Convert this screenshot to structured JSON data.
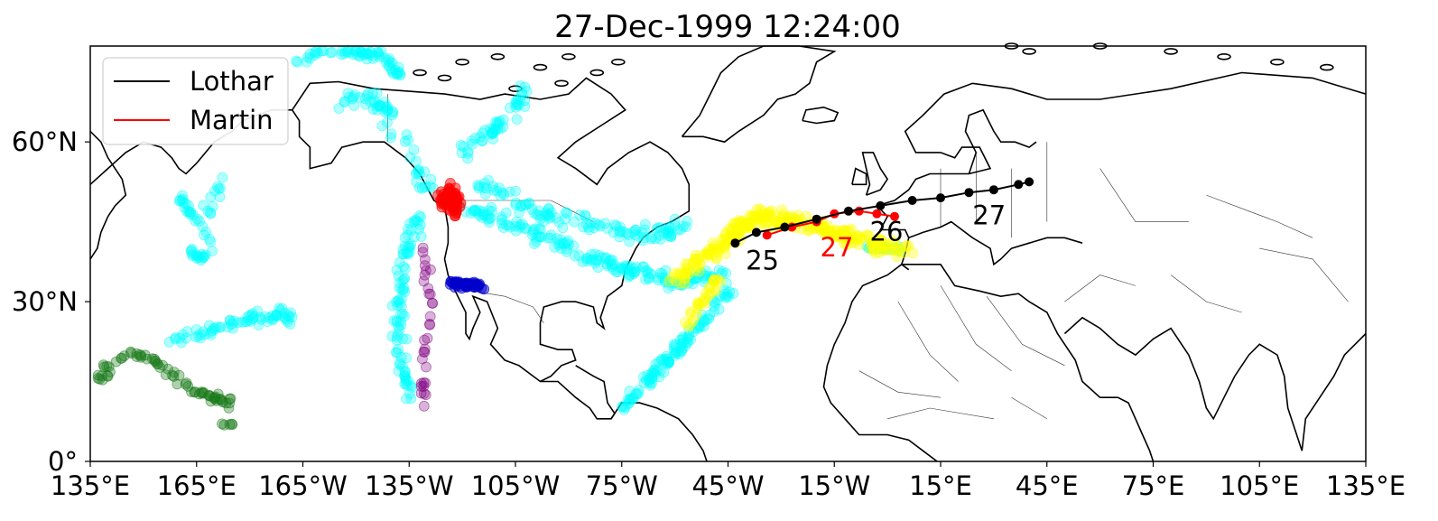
{
  "chart_data": {
    "type": "scatter",
    "title": "27-Dec-1999 12:24:00",
    "map": {
      "projection": "plate-carree",
      "lon_range": [
        135,
        495
      ],
      "lat_range": [
        0,
        78
      ],
      "xtick_values": [
        135,
        165,
        195,
        225,
        255,
        285,
        315,
        345,
        375,
        405,
        435,
        465,
        495
      ],
      "xtick_labels": [
        "135°E",
        "165°E",
        "165°W",
        "135°W",
        "105°W",
        "75°W",
        "45°W",
        "15°W",
        "15°E",
        "45°E",
        "75°E",
        "105°E",
        "135°E"
      ],
      "ytick_values": [
        60,
        30,
        0
      ],
      "ytick_labels": [
        "60°N",
        "30°N",
        "0°"
      ],
      "coastlines": true,
      "borders": true,
      "grid": false
    },
    "legend": {
      "placement": "top-left",
      "entries": [
        {
          "label": "Lothar",
          "color": "#000000"
        },
        {
          "label": "Martin",
          "color": "#ff0000"
        }
      ]
    },
    "tracks": [
      {
        "name": "Lothar",
        "color": "#000000",
        "points": [
          [
            317,
            41
          ],
          [
            323,
            43
          ],
          [
            331,
            44
          ],
          [
            340,
            45.5
          ],
          [
            349,
            47
          ],
          [
            358,
            48
          ],
          [
            367,
            49
          ],
          [
            375,
            49.5
          ],
          [
            383,
            50.5
          ],
          [
            390,
            51
          ],
          [
            397,
            52
          ],
          [
            400,
            52.5
          ]
        ],
        "day_labels": [
          {
            "text": "25",
            "lon": 320,
            "lat": 36
          },
          {
            "text": "26",
            "lon": 355,
            "lat": 41.5
          },
          {
            "text": "27",
            "lon": 384,
            "lat": 44.5
          }
        ]
      },
      {
        "name": "Martin",
        "color": "#ff0000",
        "points": [
          [
            326,
            42.5
          ],
          [
            333,
            44
          ],
          [
            340,
            45
          ],
          [
            345,
            46.5
          ],
          [
            352,
            47
          ],
          [
            357,
            46.5
          ],
          [
            362,
            46
          ]
        ],
        "day_labels": [
          {
            "text": "27",
            "lon": 341,
            "lat": 38.5
          }
        ]
      }
    ],
    "trajectory_clouds": [
      {
        "color": "#00ffff",
        "opacity": 0.3,
        "description_key": "cyan"
      },
      {
        "color": "#ffff00",
        "opacity": 0.35,
        "description_key": "yellow"
      },
      {
        "color": "#ff0000",
        "opacity": 0.5,
        "description_key": "red"
      },
      {
        "color": "#0000cc",
        "opacity": 0.5,
        "description_key": "blue"
      },
      {
        "color": "#800080",
        "opacity": 0.3,
        "description_key": "purple"
      },
      {
        "color": "#1a7a1a",
        "opacity": 0.35,
        "description_key": "green"
      }
    ]
  }
}
